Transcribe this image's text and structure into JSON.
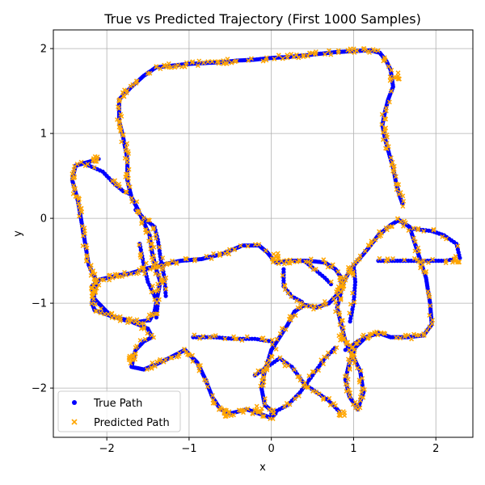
{
  "chart_data": {
    "type": "scatter",
    "title": "True vs Predicted Trajectory (First 1000 Samples)",
    "xlabel": "x",
    "ylabel": "y",
    "xlim": [
      -2.65,
      2.45
    ],
    "ylim": [
      -2.58,
      2.22
    ],
    "xticks": [
      -2,
      -1,
      0,
      1,
      2
    ],
    "yticks": [
      -2,
      -1,
      0,
      1,
      2
    ],
    "xtick_labels": [
      "−2",
      "−1",
      "0",
      "1",
      "2"
    ],
    "ytick_labels": [
      "−2",
      "−1",
      "0",
      "1",
      "2"
    ],
    "grid": true,
    "legend_position": "lower-left",
    "series": [
      {
        "name": "True Path",
        "marker": "circle",
        "color": "#0000ff",
        "x": [],
        "y": []
      },
      {
        "name": "Predicted Path",
        "marker": "x",
        "color": "#ffa500",
        "x": [],
        "y": []
      }
    ],
    "path_vertices": [
      [
        -2.1,
        0.7
      ],
      [
        -2.38,
        0.62
      ],
      [
        -2.42,
        0.45
      ],
      [
        -2.35,
        0.2
      ],
      [
        -2.28,
        -0.2
      ],
      [
        -2.22,
        -0.55
      ],
      [
        -2.12,
        -0.75
      ],
      [
        -2.18,
        -1.0
      ],
      [
        -2.15,
        -1.08
      ],
      [
        -1.95,
        -1.15
      ],
      [
        -1.75,
        -1.2
      ],
      [
        -1.62,
        -1.25
      ],
      [
        -1.5,
        -1.3
      ],
      [
        -1.45,
        -1.4
      ],
      [
        -1.55,
        -1.45
      ],
      [
        -1.65,
        -1.55
      ],
      [
        -1.7,
        -1.75
      ],
      [
        -1.55,
        -1.78
      ],
      [
        -1.4,
        -1.72
      ],
      [
        -1.25,
        -1.65
      ],
      [
        -1.05,
        -1.55
      ],
      [
        -0.9,
        -1.7
      ],
      [
        -0.8,
        -1.9
      ],
      [
        -0.72,
        -2.1
      ],
      [
        -0.62,
        -2.25
      ],
      [
        -0.5,
        -2.3
      ],
      [
        -0.3,
        -2.25
      ],
      [
        -0.15,
        -2.3
      ],
      [
        0.0,
        -2.35
      ],
      [
        0.05,
        -2.3
      ],
      [
        -0.08,
        -2.2
      ],
      [
        -0.12,
        -2.0
      ],
      [
        -0.08,
        -1.8
      ],
      [
        -0.03,
        -1.65
      ],
      [
        0.0,
        -1.55
      ],
      [
        0.1,
        -1.4
      ],
      [
        0.2,
        -1.25
      ],
      [
        0.28,
        -1.1
      ],
      [
        0.4,
        -1.02
      ],
      [
        0.55,
        -1.05
      ],
      [
        0.7,
        -1.0
      ],
      [
        0.8,
        -0.9
      ],
      [
        0.88,
        -0.75
      ],
      [
        0.95,
        -0.62
      ],
      [
        1.05,
        -0.5
      ],
      [
        1.18,
        -0.35
      ],
      [
        1.3,
        -0.2
      ],
      [
        1.45,
        -0.08
      ],
      [
        1.55,
        -0.02
      ],
      [
        1.68,
        -0.1
      ],
      [
        1.78,
        -0.4
      ],
      [
        1.88,
        -0.7
      ],
      [
        1.93,
        -1.0
      ],
      [
        1.95,
        -1.25
      ],
      [
        1.85,
        -1.38
      ],
      [
        1.65,
        -1.4
      ],
      [
        1.45,
        -1.4
      ],
      [
        1.3,
        -1.35
      ],
      [
        1.15,
        -1.4
      ],
      [
        1.02,
        -1.52
      ],
      [
        0.95,
        -1.7
      ],
      [
        0.9,
        -1.9
      ],
      [
        0.95,
        -2.1
      ],
      [
        1.05,
        -2.25
      ],
      [
        1.12,
        -2.05
      ],
      [
        1.08,
        -1.8
      ],
      [
        0.98,
        -1.6
      ],
      [
        0.9,
        -1.45
      ],
      [
        0.85,
        -1.25
      ],
      [
        0.8,
        -1.05
      ],
      [
        0.85,
        -0.85
      ],
      [
        0.85,
        -0.7
      ],
      [
        0.78,
        -0.6
      ],
      [
        0.65,
        -0.52
      ],
      [
        0.45,
        -0.5
      ],
      [
        0.25,
        -0.5
      ],
      [
        0.05,
        -0.52
      ],
      [
        -0.05,
        -0.4
      ],
      [
        -0.15,
        -0.32
      ],
      [
        -0.35,
        -0.32
      ],
      [
        -0.6,
        -0.42
      ],
      [
        -0.85,
        -0.48
      ],
      [
        -1.1,
        -0.5
      ],
      [
        -1.35,
        -0.55
      ],
      [
        -1.55,
        -0.6
      ],
      [
        -1.72,
        -0.65
      ],
      [
        -1.85,
        -0.67
      ],
      [
        -2.08,
        -0.72
      ],
      [
        -2.18,
        -0.8
      ],
      [
        -2.15,
        -0.95
      ],
      [
        -1.95,
        -1.15
      ],
      [
        -1.78,
        -1.2
      ],
      [
        -1.62,
        -1.22
      ],
      [
        -1.48,
        -1.2
      ],
      [
        -1.42,
        -1.1
      ],
      [
        -1.38,
        -0.9
      ],
      [
        -1.35,
        -0.75
      ],
      [
        -1.4,
        -0.6
      ],
      [
        -1.45,
        -0.4
      ],
      [
        -1.48,
        -0.2
      ],
      [
        -1.55,
        -0.05
      ],
      [
        -1.62,
        0.1
      ],
      [
        -1.7,
        0.25
      ],
      [
        -1.75,
        0.45
      ],
      [
        -1.75,
        0.7
      ],
      [
        -1.8,
        0.95
      ],
      [
        -1.85,
        1.15
      ],
      [
        -1.85,
        1.4
      ],
      [
        -1.7,
        1.55
      ],
      [
        -1.55,
        1.68
      ],
      [
        -1.4,
        1.78
      ],
      [
        -1.2,
        1.8
      ],
      [
        -1.0,
        1.82
      ],
      [
        -0.8,
        1.83
      ],
      [
        -0.6,
        1.84
      ],
      [
        -0.4,
        1.86
      ],
      [
        -0.2,
        1.87
      ],
      [
        0.0,
        1.89
      ],
      [
        0.2,
        1.9
      ],
      [
        0.4,
        1.92
      ],
      [
        0.6,
        1.94
      ],
      [
        0.8,
        1.96
      ],
      [
        1.0,
        1.97
      ],
      [
        1.2,
        1.98
      ],
      [
        1.32,
        1.95
      ],
      [
        1.4,
        1.85
      ],
      [
        1.45,
        1.75
      ],
      [
        1.48,
        1.55
      ],
      [
        1.42,
        1.4
      ],
      [
        1.38,
        1.25
      ],
      [
        1.35,
        1.1
      ],
      [
        1.38,
        0.95
      ],
      [
        1.42,
        0.8
      ],
      [
        1.48,
        0.6
      ],
      [
        1.52,
        0.4
      ],
      [
        1.55,
        0.3
      ],
      [
        1.6,
        0.15
      ]
    ],
    "extra_segments": [
      [
        [
          -2.28,
          0.65
        ],
        [
          -2.05,
          0.55
        ],
        [
          -1.9,
          0.4
        ],
        [
          -1.8,
          0.32
        ],
        [
          -1.7,
          0.28
        ]
      ],
      [
        [
          -1.65,
          0.1
        ],
        [
          -1.55,
          0.0
        ],
        [
          -1.42,
          -0.1
        ],
        [
          -1.38,
          -0.25
        ],
        [
          -1.35,
          -0.45
        ],
        [
          -1.3,
          -0.7
        ],
        [
          -1.28,
          -0.95
        ]
      ],
      [
        [
          -1.6,
          -0.3
        ],
        [
          -1.55,
          -0.55
        ],
        [
          -1.5,
          -0.75
        ],
        [
          -1.45,
          -0.85
        ],
        [
          -1.38,
          -1.0
        ],
        [
          -1.4,
          -1.2
        ]
      ],
      [
        [
          -0.95,
          -1.4
        ],
        [
          -0.7,
          -1.4
        ],
        [
          -0.45,
          -1.42
        ],
        [
          -0.2,
          -1.42
        ],
        [
          0.0,
          -1.45
        ],
        [
          0.05,
          -1.55
        ]
      ],
      [
        [
          0.15,
          -0.6
        ],
        [
          0.15,
          -0.8
        ],
        [
          0.25,
          -0.92
        ],
        [
          0.4,
          -1.0
        ]
      ],
      [
        [
          1.3,
          -0.5
        ],
        [
          1.5,
          -0.5
        ],
        [
          1.7,
          -0.5
        ],
        [
          1.9,
          -0.5
        ],
        [
          2.1,
          -0.5
        ],
        [
          2.25,
          -0.48
        ]
      ],
      [
        [
          0.4,
          -0.5
        ],
        [
          0.5,
          -0.58
        ],
        [
          0.65,
          -0.7
        ],
        [
          0.75,
          -0.8
        ]
      ],
      [
        [
          1.7,
          -0.12
        ],
        [
          1.95,
          -0.15
        ],
        [
          2.1,
          -0.2
        ],
        [
          2.25,
          -0.3
        ],
        [
          2.3,
          -0.5
        ]
      ],
      [
        [
          -0.2,
          -1.85
        ],
        [
          -0.05,
          -1.75
        ],
        [
          0.1,
          -1.65
        ],
        [
          0.25,
          -1.75
        ],
        [
          0.4,
          -1.95
        ],
        [
          0.55,
          -2.05
        ],
        [
          0.7,
          -2.15
        ],
        [
          0.85,
          -2.3
        ]
      ],
      [
        [
          0.0,
          -2.3
        ],
        [
          0.2,
          -2.2
        ],
        [
          0.35,
          -2.05
        ],
        [
          0.5,
          -1.85
        ],
        [
          0.65,
          -1.65
        ],
        [
          0.8,
          -1.5
        ]
      ],
      [
        [
          0.9,
          -1.55
        ],
        [
          1.05,
          -1.45
        ],
        [
          1.2,
          -1.38
        ],
        [
          1.35,
          -1.35
        ]
      ],
      [
        [
          1.0,
          -0.55
        ],
        [
          1.02,
          -0.75
        ],
        [
          1.0,
          -1.0
        ],
        [
          0.95,
          -1.25
        ]
      ]
    ],
    "clusters": [
      [
        1.52,
        1.68
      ],
      [
        2.25,
        -0.48
      ],
      [
        -2.15,
        -0.85
      ],
      [
        0.85,
        -2.3
      ],
      [
        -0.55,
        -2.3
      ],
      [
        -1.7,
        -1.65
      ],
      [
        0.05,
        -0.45
      ],
      [
        0.85,
        -1.4
      ],
      [
        -2.15,
        0.7
      ],
      [
        -0.15,
        -2.25
      ]
    ]
  }
}
